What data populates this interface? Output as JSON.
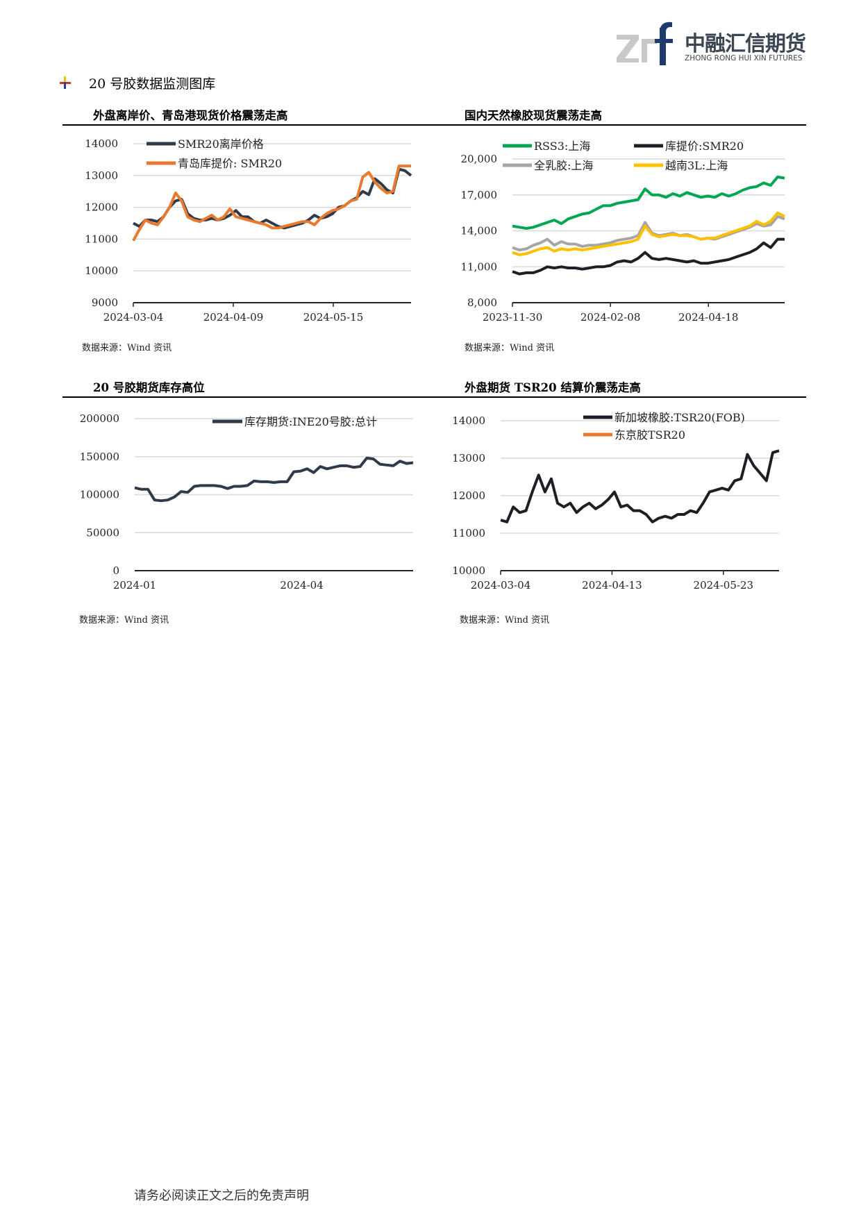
{
  "logo": {
    "mark": "zrf",
    "name_cn": "中融汇信期货",
    "name_en": "ZHONG RONG HUI XIN FUTURES"
  },
  "section_title": "20 号胶数据监测图库",
  "footer": "请务必阅读正文之后的免责声明",
  "colors": {
    "dark": "#2f3a4a",
    "orange": "#e8792e",
    "green": "#00a651",
    "black": "#1c1f26",
    "grey": "#a5a5a5",
    "yellow": "#ffc000"
  },
  "chart_data": [
    {
      "type": "line",
      "title": "外盘离岸价、青岛港现货价格震荡走高",
      "source": "数据来源：Wind 资讯",
      "ylim": [
        9000,
        14000
      ],
      "yticks": [
        "14000",
        "13000",
        "12000",
        "11000",
        "10000",
        "9000"
      ],
      "xticks": [
        "2024-03-04",
        "2024-04-09",
        "2024-05-15"
      ],
      "legend_position": "top-left",
      "series": [
        {
          "name": "SMR20离岸价格",
          "color": "#2f3a4a",
          "values": [
            11500,
            11400,
            11600,
            11600,
            11550,
            11700,
            12000,
            12200,
            12250,
            11800,
            11650,
            11600,
            11600,
            11650,
            11600,
            11650,
            11750,
            11900,
            11700,
            11700,
            11550,
            11500,
            11600,
            11500,
            11400,
            11350,
            11400,
            11450,
            11500,
            11600,
            11750,
            11650,
            11700,
            11800,
            12000,
            12050,
            12200,
            12300,
            12500,
            12400,
            12900,
            12750,
            12550,
            12450,
            13200,
            13150,
            13000
          ]
        },
        {
          "name": "青岛库提价: SMR20",
          "color": "#e8792e",
          "values": [
            10950,
            11300,
            11600,
            11500,
            11450,
            11700,
            12000,
            12450,
            12200,
            11700,
            11600,
            11550,
            11650,
            11750,
            11600,
            11700,
            11950,
            11700,
            11650,
            11600,
            11550,
            11500,
            11450,
            11350,
            11350,
            11400,
            11450,
            11500,
            11550,
            11550,
            11450,
            11650,
            11800,
            11900,
            11950,
            12050,
            12200,
            12250,
            12950,
            13100,
            12800,
            12600,
            12450,
            12500,
            13300,
            13300,
            13300
          ]
        }
      ]
    },
    {
      "type": "line",
      "title": "国内天然橡胶现货震荡走高",
      "source": "数据来源：Wind 资讯",
      "ylim": [
        8000,
        20000
      ],
      "yticks": [
        "20,000",
        "17,000",
        "14,000",
        "11,000",
        "8,000"
      ],
      "xticks": [
        "2023-11-30",
        "2024-02-08",
        "2024-04-18"
      ],
      "legend_position": "top",
      "series": [
        {
          "name": "RSS3:上海",
          "color": "#00a651",
          "values": [
            14400,
            14300,
            14200,
            14300,
            14500,
            14700,
            14900,
            14600,
            15000,
            15200,
            15400,
            15500,
            15800,
            16100,
            16100,
            16300,
            16400,
            16500,
            16600,
            17500,
            17000,
            17000,
            16800,
            17100,
            16900,
            17200,
            17000,
            16800,
            16900,
            16800,
            17100,
            16900,
            17100,
            17400,
            17600,
            17700,
            18000,
            17800,
            18500,
            18400
          ]
        },
        {
          "name": "库提价:SMR20",
          "color": "#1c1f26",
          "values": [
            10600,
            10400,
            10500,
            10500,
            10700,
            11000,
            10900,
            11000,
            10900,
            10900,
            10800,
            10900,
            11000,
            11000,
            11100,
            11400,
            11500,
            11400,
            11700,
            12200,
            11700,
            11600,
            11700,
            11600,
            11500,
            11400,
            11500,
            11300,
            11300,
            11400,
            11500,
            11600,
            11800,
            12000,
            12200,
            12500,
            13000,
            12600,
            13300,
            13300
          ]
        },
        {
          "name": "全乳胶:上海",
          "color": "#a5a5a5",
          "values": [
            12600,
            12400,
            12500,
            12800,
            13000,
            13300,
            12800,
            13100,
            12900,
            12900,
            12700,
            12800,
            12800,
            12900,
            13000,
            13200,
            13300,
            13400,
            13600,
            14700,
            13800,
            13600,
            13700,
            13800,
            13600,
            13700,
            13500,
            13300,
            13400,
            13300,
            13500,
            13700,
            13900,
            14100,
            14300,
            14600,
            14400,
            14500,
            15200,
            15000
          ]
        },
        {
          "name": "越南3L:上海",
          "color": "#ffc000",
          "values": [
            12200,
            12000,
            12100,
            12300,
            12500,
            12600,
            12300,
            12500,
            12400,
            12500,
            12400,
            12500,
            12600,
            12700,
            12800,
            12900,
            13000,
            13100,
            13300,
            14400,
            13700,
            13500,
            13600,
            13700,
            13600,
            13600,
            13500,
            13300,
            13400,
            13400,
            13600,
            13800,
            14000,
            14200,
            14400,
            14800,
            14500,
            14800,
            15500,
            15200
          ]
        }
      ]
    },
    {
      "type": "line",
      "title": "20 号胶期货库存高位",
      "source": "数据来源：Wind 资讯",
      "ylim": [
        0,
        200000
      ],
      "yticks": [
        "200000",
        "150000",
        "100000",
        "50000",
        "0"
      ],
      "xticks": [
        "2024-01",
        "2024-04"
      ],
      "legend_position": "top-right",
      "series": [
        {
          "name": "库存期货:INE20号胶:总计",
          "color": "#2f3a4a",
          "values": [
            109000,
            107000,
            107000,
            93000,
            92000,
            93000,
            97000,
            104000,
            103000,
            111000,
            112000,
            112000,
            112000,
            111000,
            108000,
            111000,
            111000,
            112000,
            118000,
            117000,
            117000,
            116000,
            117000,
            117000,
            130000,
            131000,
            134000,
            129000,
            137000,
            134000,
            136000,
            138000,
            138000,
            136000,
            137000,
            148000,
            147000,
            140000,
            139000,
            138000,
            144000,
            141000,
            142000
          ]
        }
      ]
    },
    {
      "type": "line",
      "title": "外盘期货 TSR20 结算价震荡走高",
      "source": "数据来源：Wind 资讯",
      "ylim": [
        10000,
        14000
      ],
      "yticks": [
        "14000",
        "13000",
        "12000",
        "11000",
        "10000"
      ],
      "xticks": [
        "2024-03-04",
        "2024-04-13",
        "2024-05-23"
      ],
      "legend_position": "top-right",
      "series": [
        {
          "name": "新加坡橡胶:TSR20(FOB)",
          "color": "#1c1f26",
          "values": [
            11350,
            11300,
            11700,
            11550,
            11600,
            12100,
            12550,
            12100,
            12450,
            11800,
            11700,
            11800,
            11550,
            11700,
            11800,
            11650,
            11750,
            11900,
            12100,
            11700,
            11750,
            11600,
            11600,
            11500,
            11300,
            11400,
            11450,
            11400,
            11500,
            11500,
            11600,
            11550,
            11800,
            12100,
            12150,
            12200,
            12150,
            12400,
            12450,
            13100,
            12800,
            12600,
            12400,
            13150,
            13200
          ]
        },
        {
          "name": "东京胶TSR20",
          "color": "#e8792e",
          "values": []
        }
      ]
    }
  ]
}
